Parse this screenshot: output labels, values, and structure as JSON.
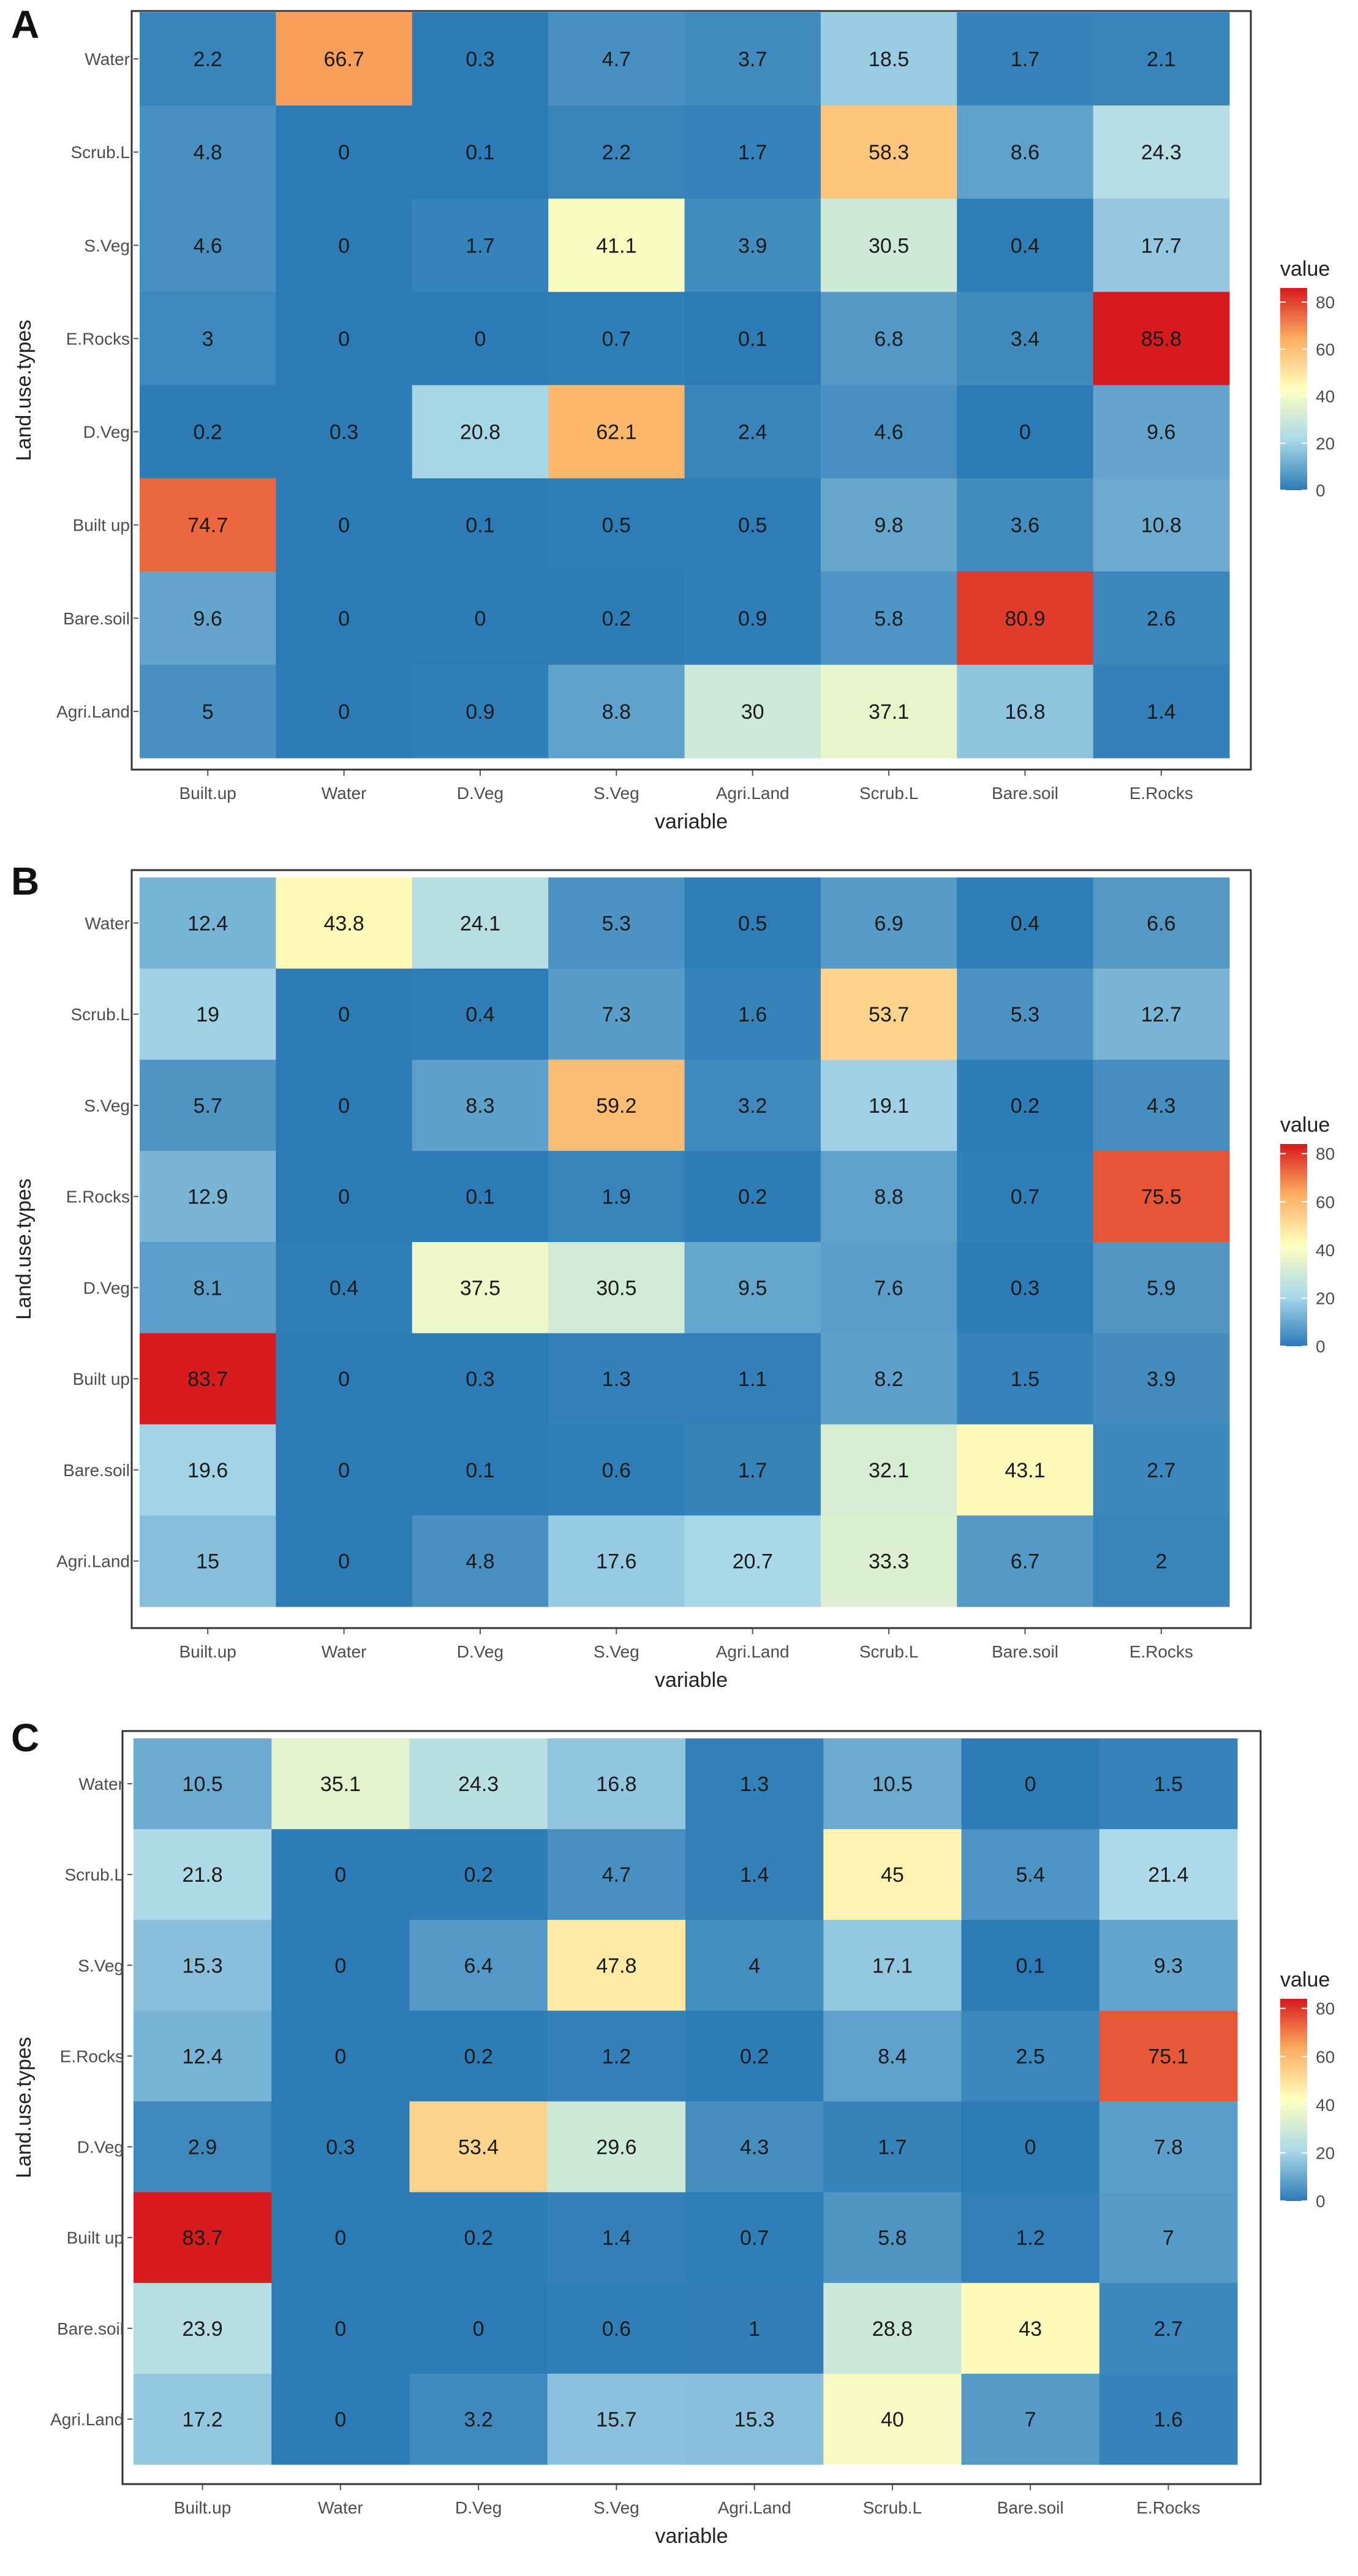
{
  "figure": {
    "colorscale": [
      "#2c7bb6",
      "#abd9e9",
      "#ffffbf",
      "#fdae61",
      "#d7191c"
    ]
  },
  "chart_data": [
    {
      "type": "heatmap",
      "panel_label": "A",
      "xlabel": "variable",
      "ylabel": "Land.use.types",
      "x_categories": [
        "Built.up",
        "Water",
        "D.Veg",
        "S.Veg",
        "Agri.Land",
        "Scrub.L",
        "Bare.soil",
        "E.Rocks"
      ],
      "y_categories": [
        "Water",
        "Scrub.L",
        "S.Veg",
        "E.Rocks",
        "D.Veg",
        "Built up",
        "Bare.soil",
        "Agri.Land"
      ],
      "values": [
        [
          2.2,
          66.7,
          0.3,
          4.7,
          3.7,
          18.5,
          1.7,
          2.1
        ],
        [
          4.8,
          0,
          0.1,
          2.2,
          1.7,
          58.3,
          8.6,
          24.3
        ],
        [
          4.6,
          0,
          1.7,
          41.1,
          3.9,
          30.5,
          0.4,
          17.7
        ],
        [
          3,
          0,
          0,
          0.7,
          0.1,
          6.8,
          3.4,
          85.8
        ],
        [
          0.2,
          0.3,
          20.8,
          62.1,
          2.4,
          4.6,
          0,
          9.6
        ],
        [
          74.7,
          0,
          0.1,
          0.5,
          0.5,
          9.8,
          3.6,
          10.8
        ],
        [
          9.6,
          0,
          0,
          0.2,
          0.9,
          5.8,
          80.9,
          2.6
        ],
        [
          5,
          0,
          0.9,
          8.8,
          30,
          37.1,
          16.8,
          1.4
        ]
      ],
      "legend": {
        "title": "value",
        "range": [
          0,
          86
        ],
        "ticks": [
          "0",
          "20",
          "40",
          "60",
          "80"
        ]
      }
    },
    {
      "type": "heatmap",
      "panel_label": "B",
      "xlabel": "variable",
      "ylabel": "Land.use.types",
      "x_categories": [
        "Built.up",
        "Water",
        "D.Veg",
        "S.Veg",
        "Agri.Land",
        "Scrub.L",
        "Bare.soil",
        "E.Rocks"
      ],
      "y_categories": [
        "Water",
        "Scrub.L",
        "S.Veg",
        "E.Rocks",
        "D.Veg",
        "Built up",
        "Bare.soil",
        "Agri.Land"
      ],
      "values": [
        [
          12.4,
          43.8,
          24.1,
          5.3,
          0.5,
          6.9,
          0.4,
          6.6
        ],
        [
          19,
          0,
          0.4,
          7.3,
          1.6,
          53.7,
          5.3,
          12.7
        ],
        [
          5.7,
          0,
          8.3,
          59.2,
          3.2,
          19.1,
          0.2,
          4.3
        ],
        [
          12.9,
          0,
          0.1,
          1.9,
          0.2,
          8.8,
          0.7,
          75.5
        ],
        [
          8.1,
          0.4,
          37.5,
          30.5,
          9.5,
          7.6,
          0.3,
          5.9
        ],
        [
          83.7,
          0,
          0.3,
          1.3,
          1.1,
          8.2,
          1.5,
          3.9
        ],
        [
          19.6,
          0,
          0.1,
          0.6,
          1.7,
          32.1,
          43.1,
          2.7
        ],
        [
          15,
          0,
          4.8,
          17.6,
          20.7,
          33.3,
          6.7,
          2
        ]
      ],
      "legend": {
        "title": "value",
        "range": [
          0,
          84
        ],
        "ticks": [
          "0",
          "20",
          "40",
          "60",
          "80"
        ]
      }
    },
    {
      "type": "heatmap",
      "panel_label": "C",
      "xlabel": "variable",
      "ylabel": "Land.use.types",
      "x_categories": [
        "Built.up",
        "Water",
        "D.Veg",
        "S.Veg",
        "Agri.Land",
        "Scrub.L",
        "Bare.soil",
        "E.Rocks"
      ],
      "y_categories": [
        "Water",
        "Scrub.L",
        "S.Veg",
        "E.Rocks",
        "D.Veg",
        "Built up",
        "Bare.soil",
        "Agri.Land"
      ],
      "values": [
        [
          10.5,
          35.1,
          24.3,
          16.8,
          1.3,
          10.5,
          0,
          1.5
        ],
        [
          21.8,
          0,
          0.2,
          4.7,
          1.4,
          45,
          5.4,
          21.4
        ],
        [
          15.3,
          0,
          6.4,
          47.8,
          4,
          17.1,
          0.1,
          9.3
        ],
        [
          12.4,
          0,
          0.2,
          1.2,
          0.2,
          8.4,
          2.5,
          75.1
        ],
        [
          2.9,
          0.3,
          53.4,
          29.6,
          4.3,
          1.7,
          0,
          7.8
        ],
        [
          83.7,
          0,
          0.2,
          1.4,
          0.7,
          5.8,
          1.2,
          7
        ],
        [
          23.9,
          0,
          0,
          0.6,
          1,
          28.8,
          43,
          2.7
        ],
        [
          17.2,
          0,
          3.2,
          15.7,
          15.3,
          40,
          7,
          1.6
        ]
      ],
      "legend": {
        "title": "value",
        "range": [
          0,
          84
        ],
        "ticks": [
          "0",
          "20",
          "40",
          "60",
          "80"
        ]
      }
    }
  ]
}
